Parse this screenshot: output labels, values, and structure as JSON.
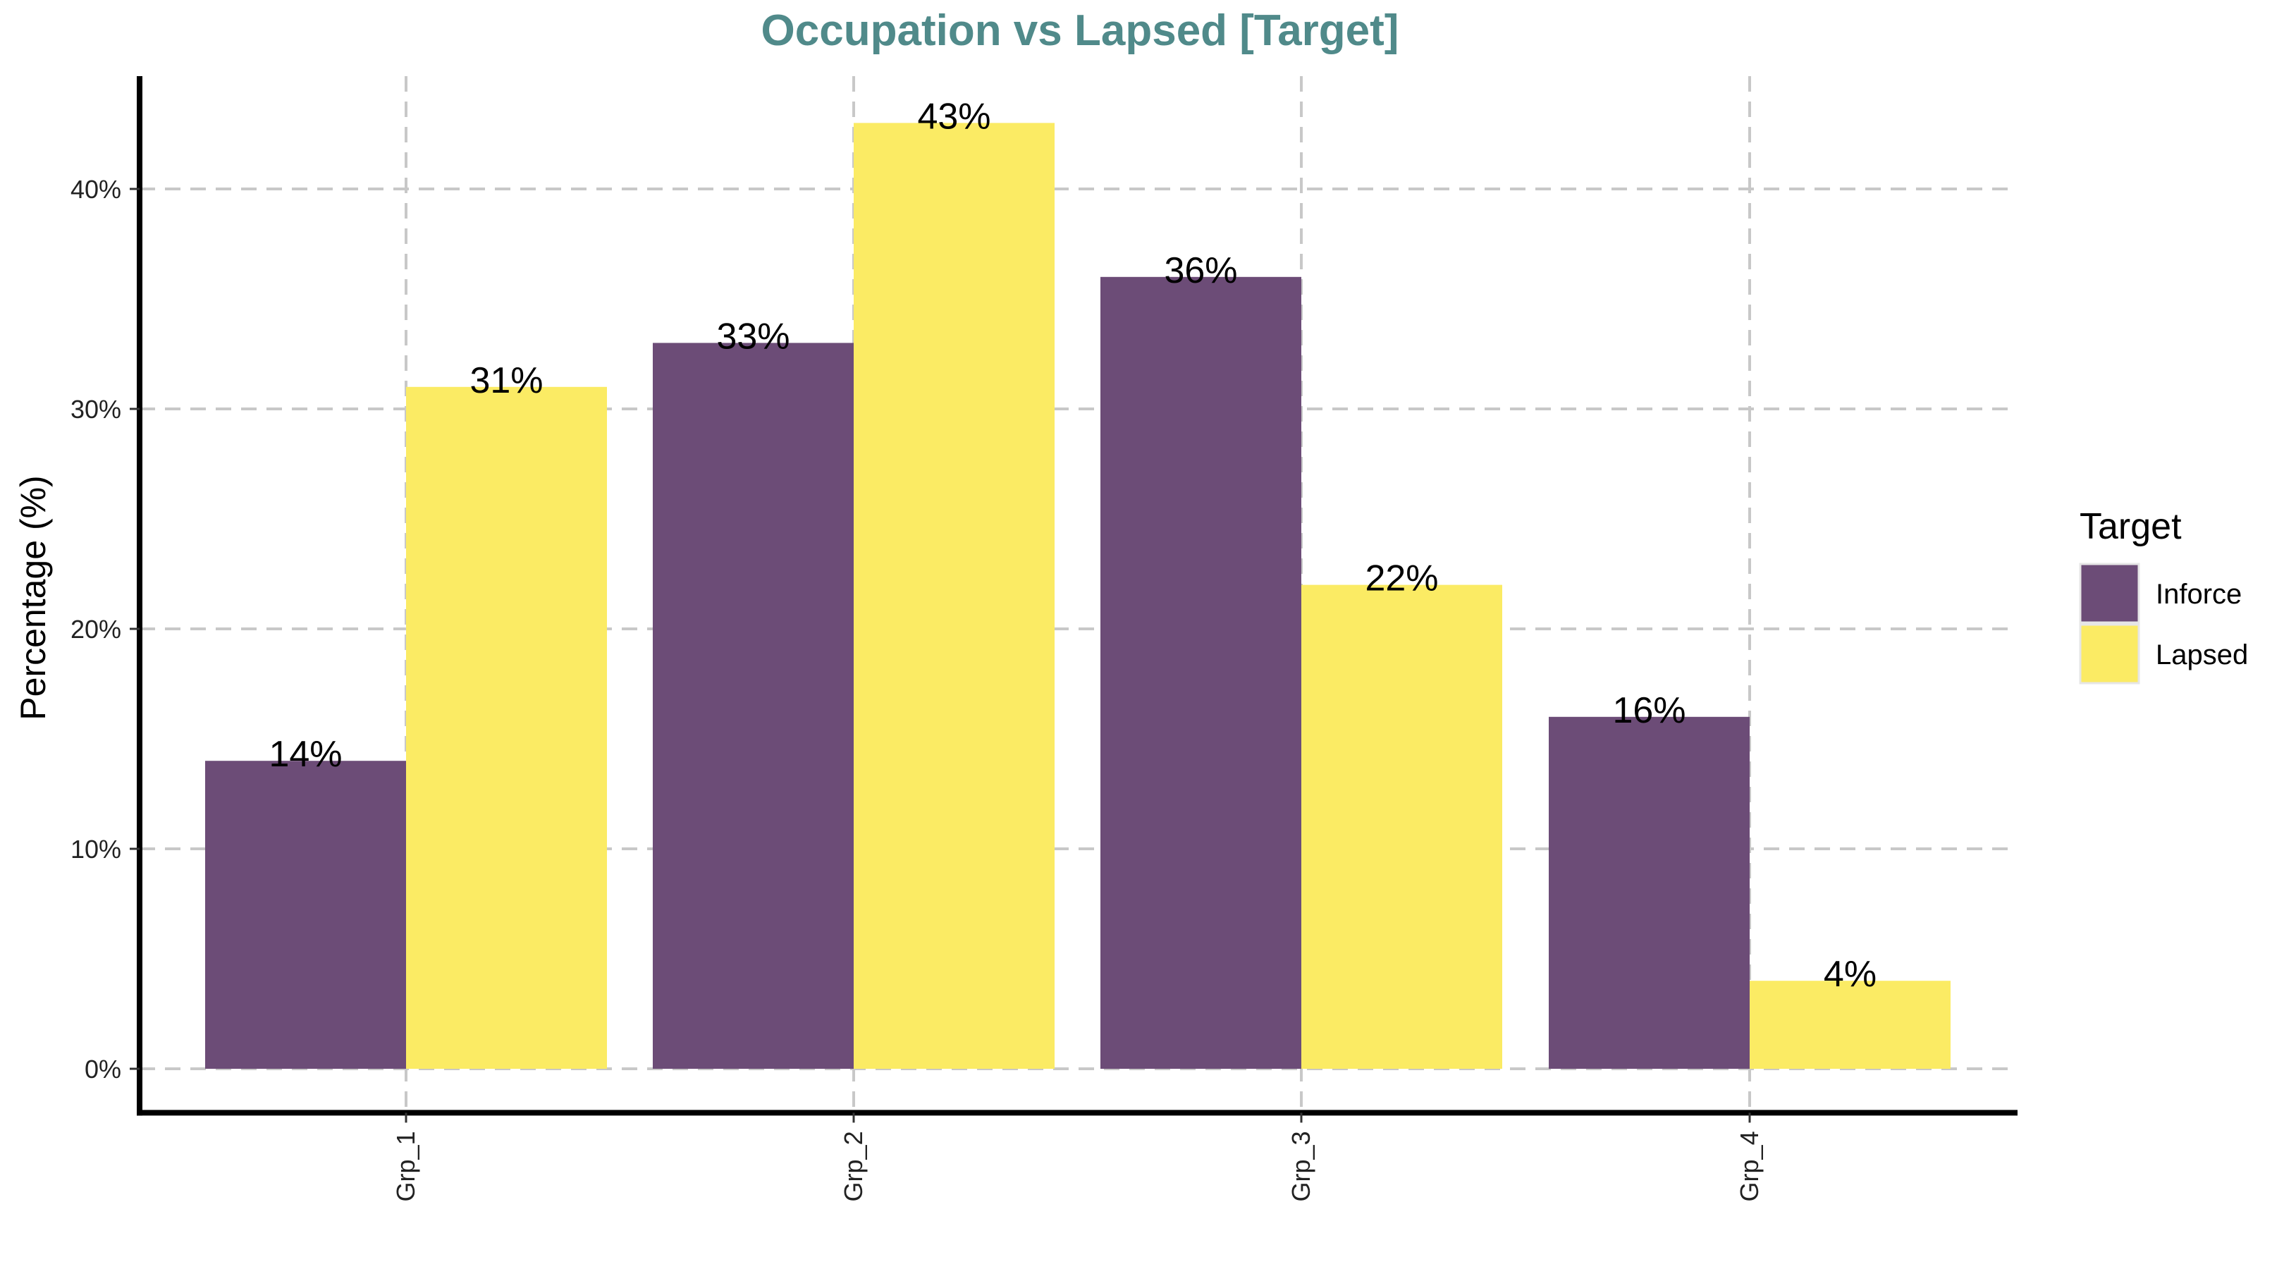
{
  "chart_data": {
    "type": "bar",
    "title": "Occupation vs Lapsed [Target]",
    "xlabel": "",
    "ylabel": "Percentage (%)",
    "categories": [
      "Grp_1",
      "Grp_2",
      "Grp_3",
      "Grp_4"
    ],
    "series": [
      {
        "name": "Inforce",
        "color": "#6c4c77",
        "values": [
          14,
          33,
          36,
          16
        ],
        "labels": [
          "14%",
          "33%",
          "36%",
          "16%"
        ]
      },
      {
        "name": "Lapsed",
        "color": "#fbeb64",
        "values": [
          31,
          43,
          22,
          4
        ],
        "labels": [
          "31%",
          "43%",
          "22%",
          "4%"
        ]
      }
    ],
    "ylim": [
      -2,
      45
    ],
    "yticks": [
      0,
      10,
      20,
      30,
      40
    ],
    "ytick_labels": [
      "0%",
      "10%",
      "20%",
      "30%",
      "40%"
    ],
    "grid": true,
    "legend": {
      "title": "Target",
      "placement": "right"
    },
    "title_color": "#508a8a"
  }
}
